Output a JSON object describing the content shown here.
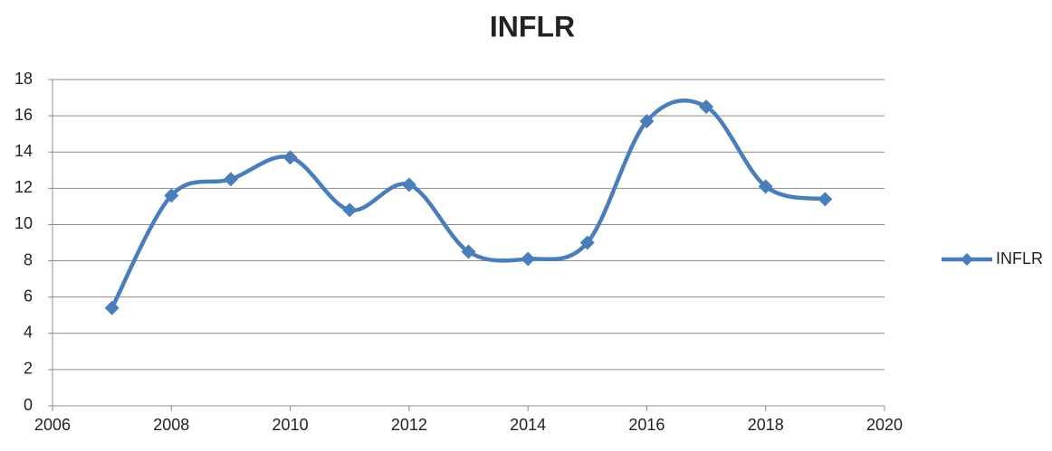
{
  "chart_data": {
    "type": "line",
    "title": "INFLR",
    "x": [
      2007,
      2008,
      2009,
      2010,
      2011,
      2012,
      2013,
      2014,
      2015,
      2016,
      2017,
      2018,
      2019
    ],
    "series": [
      {
        "name": "INFLR",
        "color": "#4a7ebb",
        "values": [
          5.4,
          11.6,
          12.5,
          13.7,
          10.8,
          12.2,
          8.5,
          8.1,
          9.0,
          15.7,
          16.5,
          12.1,
          11.4
        ]
      }
    ],
    "xlim": [
      2006,
      2020
    ],
    "xticks": [
      2006,
      2008,
      2010,
      2012,
      2014,
      2016,
      2018,
      2020
    ],
    "ylim": [
      0,
      18
    ],
    "yticks": [
      0,
      2,
      4,
      6,
      8,
      10,
      12,
      14,
      16,
      18
    ],
    "grid": true,
    "smooth": true,
    "legend": "right"
  }
}
